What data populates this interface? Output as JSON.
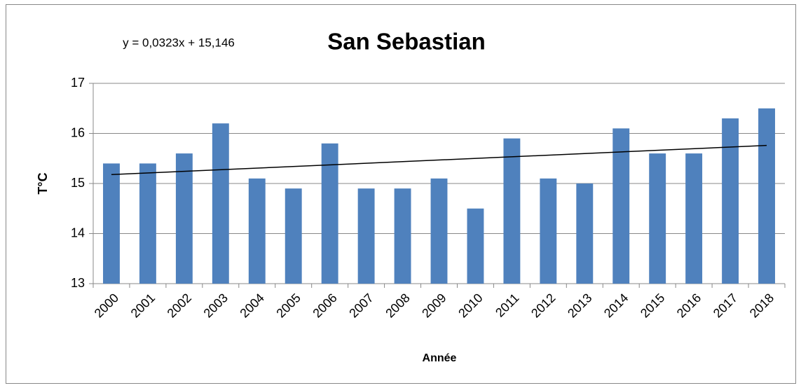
{
  "chart_data": {
    "type": "bar",
    "title": "San Sebastian",
    "categories": [
      "2000",
      "2001",
      "2002",
      "2003",
      "2004",
      "2005",
      "2006",
      "2007",
      "2008",
      "2009",
      "2010",
      "2011",
      "2012",
      "2013",
      "2014",
      "2015",
      "2016",
      "2017",
      "2018"
    ],
    "values": [
      15.4,
      15.4,
      15.6,
      16.2,
      15.1,
      14.9,
      15.8,
      14.9,
      14.9,
      15.1,
      14.5,
      15.9,
      15.1,
      15.0,
      16.1,
      15.6,
      15.6,
      16.3,
      16.5
    ],
    "color": "#4f81bd",
    "ylim": [
      13,
      17
    ],
    "yticks": [
      13,
      14,
      15,
      16,
      17
    ],
    "grid": true,
    "y_label": "T°C",
    "x_label": "Année",
    "trendline": {
      "label": "y = 0,0323x + 15,146",
      "slope": 0.0323,
      "intercept": 15.146
    }
  }
}
